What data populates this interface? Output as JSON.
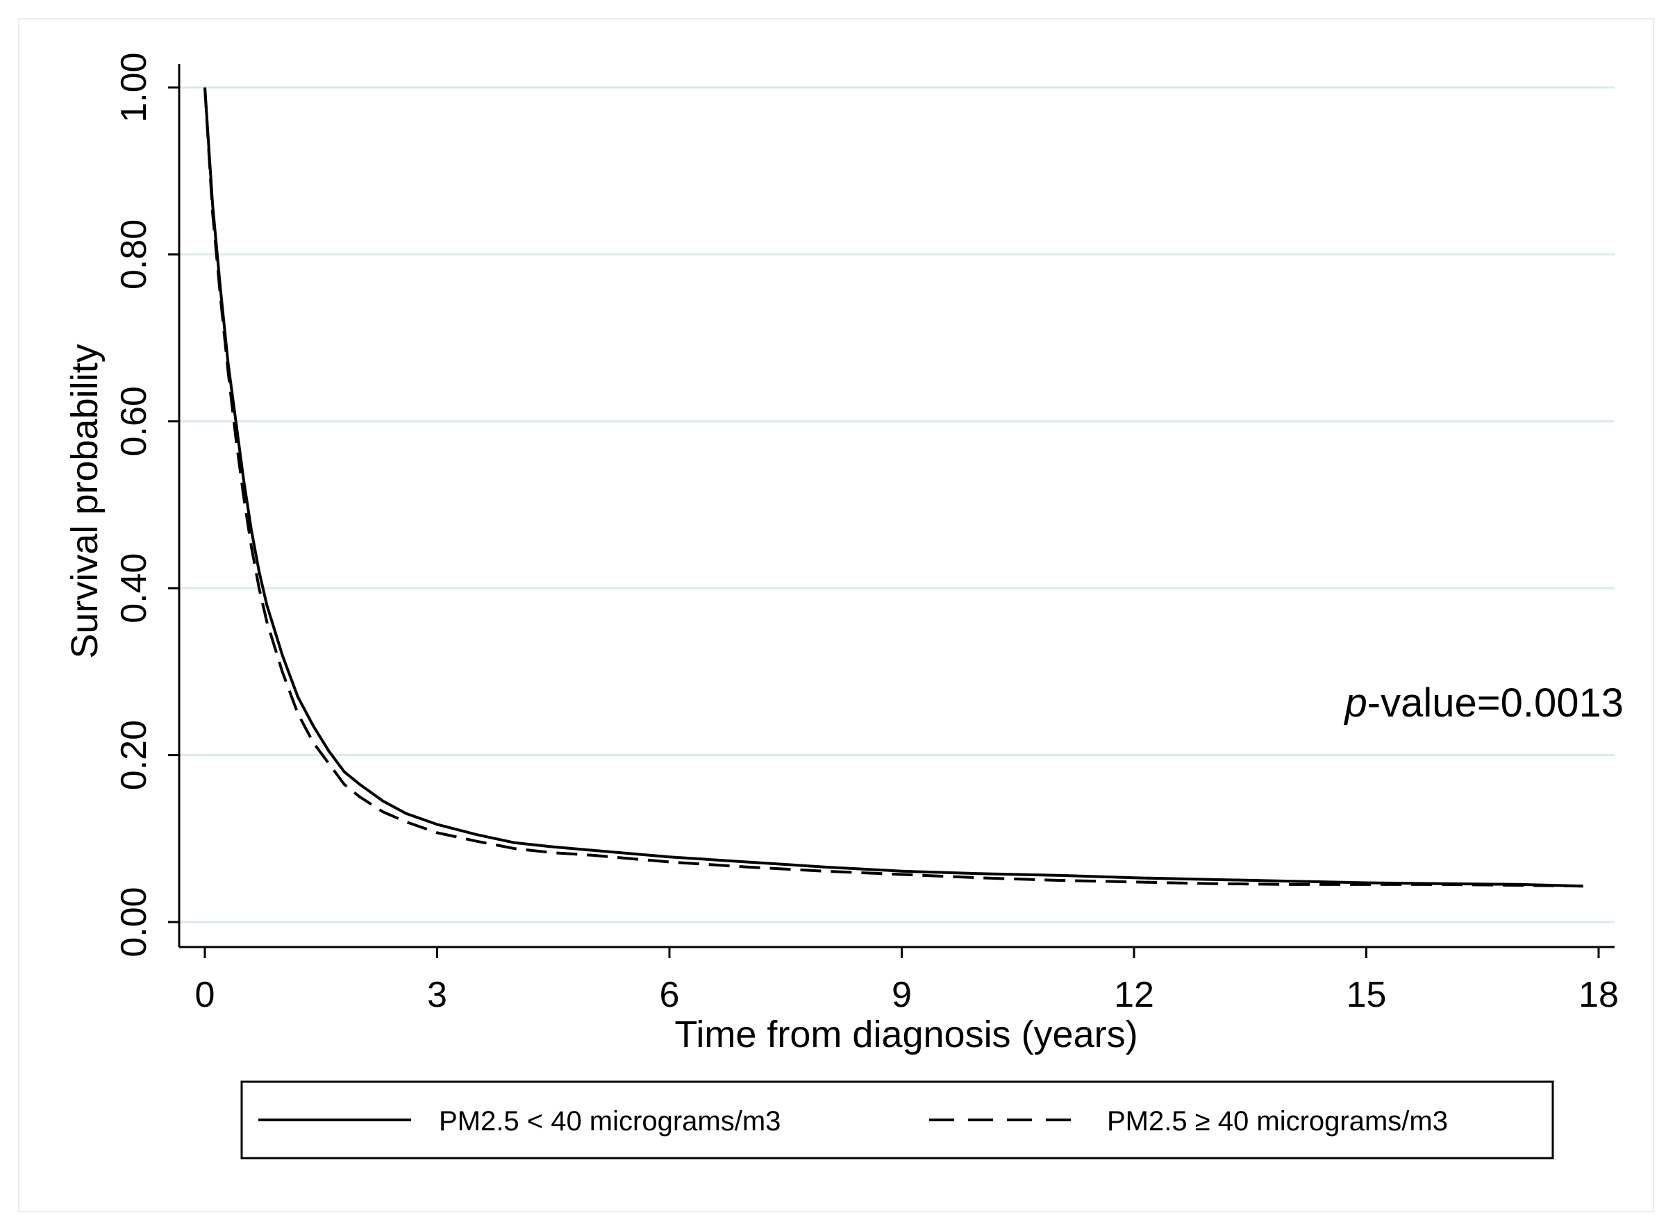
{
  "chart_data": {
    "type": "line",
    "title": "",
    "xlabel": "Time from diagnosis (years)",
    "ylabel": "Survival probability",
    "xlim": [
      0,
      18
    ],
    "ylim": [
      0,
      1
    ],
    "x_ticks": [
      {
        "value": 0,
        "label": "0"
      },
      {
        "value": 3,
        "label": "3"
      },
      {
        "value": 6,
        "label": "6"
      },
      {
        "value": 9,
        "label": "9"
      },
      {
        "value": 12,
        "label": "12"
      },
      {
        "value": 15,
        "label": "15"
      },
      {
        "value": 18,
        "label": "18"
      }
    ],
    "y_ticks": [
      {
        "value": 0.0,
        "label": "0.00"
      },
      {
        "value": 0.2,
        "label": "0.20"
      },
      {
        "value": 0.4,
        "label": "0.40"
      },
      {
        "value": 0.6,
        "label": "0.60"
      },
      {
        "value": 0.8,
        "label": "0.80"
      },
      {
        "value": 1.0,
        "label": "1.00"
      }
    ],
    "grid": "horizontal",
    "grid_color": "#dce9ee",
    "annotation": {
      "p_symbol": "p",
      "rest": "-value=0.0013"
    },
    "legend_position": "bottom",
    "series": [
      {
        "name": "PM2.5 < 40 micrograms/m3",
        "style": "solid",
        "color": "#000000",
        "x": [
          0,
          0.1,
          0.2,
          0.3,
          0.4,
          0.5,
          0.6,
          0.7,
          0.8,
          1.0,
          1.2,
          1.4,
          1.6,
          1.8,
          2.0,
          2.3,
          2.6,
          3.0,
          3.5,
          4.0,
          4.5,
          5.0,
          6.0,
          7.0,
          8.0,
          9.0,
          10.0,
          11.0,
          12.0,
          13.0,
          14.0,
          15.0,
          16.0,
          17.0,
          17.8
        ],
        "y": [
          1.0,
          0.86,
          0.76,
          0.67,
          0.6,
          0.53,
          0.47,
          0.42,
          0.38,
          0.32,
          0.27,
          0.235,
          0.205,
          0.18,
          0.165,
          0.145,
          0.13,
          0.117,
          0.105,
          0.095,
          0.09,
          0.086,
          0.078,
          0.072,
          0.066,
          0.061,
          0.058,
          0.056,
          0.053,
          0.051,
          0.049,
          0.047,
          0.046,
          0.045,
          0.043
        ]
      },
      {
        "name": "PM2.5 ≥ 40 micrograms/m3",
        "style": "dashed",
        "color": "#000000",
        "x": [
          0,
          0.1,
          0.2,
          0.3,
          0.4,
          0.5,
          0.6,
          0.7,
          0.8,
          1.0,
          1.2,
          1.4,
          1.6,
          1.8,
          2.0,
          2.3,
          2.6,
          3.0,
          3.5,
          4.0,
          4.5,
          5.0,
          6.0,
          7.0,
          8.0,
          9.0,
          10.0,
          11.0,
          12.0,
          13.0,
          14.0,
          15.0,
          16.0,
          17.0,
          17.8
        ],
        "y": [
          1.0,
          0.85,
          0.75,
          0.66,
          0.58,
          0.51,
          0.45,
          0.4,
          0.36,
          0.3,
          0.25,
          0.215,
          0.19,
          0.165,
          0.15,
          0.132,
          0.12,
          0.107,
          0.097,
          0.088,
          0.083,
          0.08,
          0.072,
          0.066,
          0.061,
          0.057,
          0.053,
          0.05,
          0.048,
          0.046,
          0.045,
          0.045,
          0.045,
          0.044,
          0.043
        ]
      }
    ]
  }
}
